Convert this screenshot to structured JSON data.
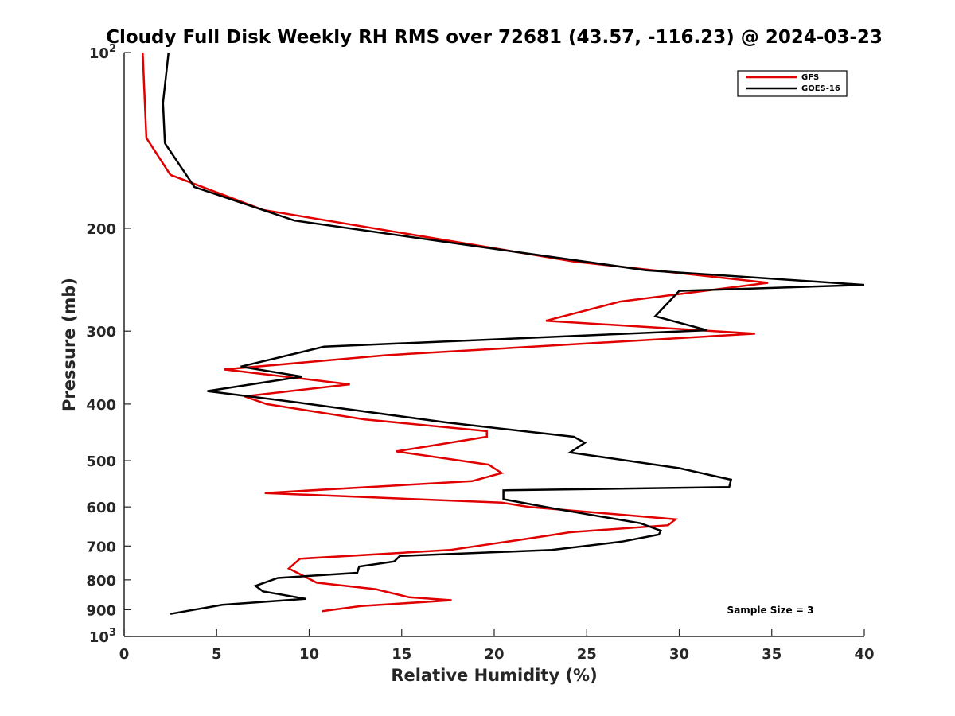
{
  "chart_data": {
    "type": "line",
    "title": "Cloudy Full Disk Weekly RH RMS over 72681 (43.57, -116.23) @ 2024-03-23",
    "xlabel": "Relative Humidity (%)",
    "ylabel": "Pressure (mb)",
    "xlim": [
      0,
      40
    ],
    "ylim": [
      100,
      1000
    ],
    "yscale": "log",
    "y_reversed": true,
    "grid": false,
    "legend_location": "top-right",
    "x_ticks": [
      "0",
      "5",
      "10",
      "15",
      "20",
      "25",
      "30",
      "35",
      "40"
    ],
    "y_ticks": [
      {
        "value": 100,
        "base": "10",
        "exp": "2"
      },
      {
        "value": 200,
        "label": "200"
      },
      {
        "value": 300,
        "label": "300"
      },
      {
        "value": 400,
        "label": "400"
      },
      {
        "value": 500,
        "label": "500"
      },
      {
        "value": 600,
        "label": "600"
      },
      {
        "value": 700,
        "label": "700"
      },
      {
        "value": 800,
        "label": "800"
      },
      {
        "value": 900,
        "label": "900"
      },
      {
        "value": 1000,
        "base": "10",
        "exp": "3"
      }
    ],
    "series": [
      {
        "name": "GFS",
        "color": "#e00000",
        "x": [
          1.0,
          1.2,
          2.5,
          7.5,
          24.3,
          34.8,
          26.8,
          22.8,
          34.1,
          14.1,
          5.4,
          12.2,
          6.5,
          7.7,
          13.0,
          19.6,
          19.6,
          14.7,
          19.7,
          20.4,
          18.8,
          7.6,
          20.4,
          21.9,
          29.8,
          29.4,
          24.1,
          21.7,
          17.6,
          9.5,
          8.9,
          9.5,
          10.4,
          13.6,
          15.4,
          17.7,
          12.8,
          10.7
        ],
        "y": [
          100,
          140,
          162,
          186,
          228,
          248,
          267,
          288,
          303,
          330,
          349,
          370,
          388,
          400,
          425,
          445,
          455,
          482,
          508,
          525,
          542,
          568,
          590,
          600,
          630,
          645,
          663,
          681,
          711,
          736,
          765,
          782,
          809,
          830,
          857,
          867,
          887,
          905
        ]
      },
      {
        "name": "GOES-16",
        "color": "#000000",
        "x": [
          2.4,
          2.1,
          2.2,
          3.8,
          9.2,
          28.2,
          40.0,
          30.0,
          28.7,
          31.5,
          10.8,
          6.3,
          9.6,
          4.5,
          9.5,
          17.4,
          24.3,
          24.9,
          24.1,
          30.0,
          32.8,
          32.7,
          20.5,
          20.5,
          23.5,
          27.9,
          29.0,
          28.9,
          26.9,
          23.1,
          14.9,
          14.6,
          12.7,
          12.6,
          8.3,
          7.1,
          7.5,
          9.8,
          5.3,
          2.5
        ],
        "y": [
          100,
          122,
          143,
          170,
          194,
          236,
          250,
          256,
          283,
          299,
          319,
          345,
          359,
          380,
          398,
          430,
          455,
          466,
          484,
          515,
          539,
          555,
          562,
          582,
          606,
          640,
          659,
          669,
          688,
          711,
          728,
          744,
          759,
          778,
          794,
          819,
          837,
          862,
          883,
          915
        ]
      }
    ],
    "annotation": "Sample Size = 3"
  }
}
